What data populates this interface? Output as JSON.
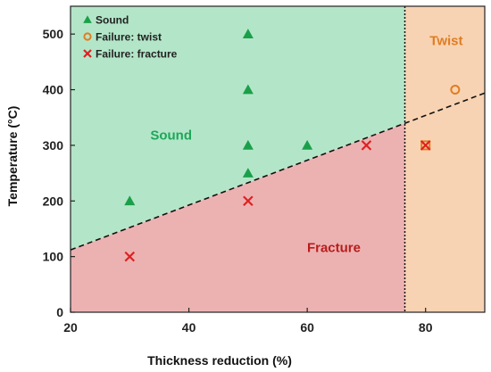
{
  "chart_data": {
    "type": "scatter",
    "xlabel": "Thickness reduction (%)",
    "ylabel": "Temperature (°C)",
    "xlim": [
      20,
      90
    ],
    "ylim": [
      0,
      550
    ],
    "xticks": [
      20,
      40,
      60,
      80
    ],
    "yticks": [
      0,
      100,
      200,
      300,
      400,
      500
    ],
    "grid": false,
    "legend_position": "top-left",
    "boundary_line": {
      "style": "dashed",
      "from": [
        20,
        112
      ],
      "to": [
        90,
        394
      ]
    },
    "vertical_boundary": {
      "style": "dotted",
      "x": 76.5
    },
    "regions": [
      {
        "label": "Sound",
        "color": "#b3e6c8",
        "label_color": "#1fa65a",
        "label_at": [
          37,
          310
        ]
      },
      {
        "label": "Fracture",
        "color": "#ecb2b2",
        "label_color": "#b81c1c",
        "label_at": [
          64.5,
          108
        ]
      },
      {
        "label": "Twist",
        "color": "#f7d3b3",
        "label_color": "#e07d22",
        "label_at": [
          83.5,
          480
        ]
      }
    ],
    "series": [
      {
        "name": "Sound",
        "marker": "triangle",
        "color": "#1aa04a",
        "points": [
          [
            30,
            200
          ],
          [
            50,
            250
          ],
          [
            50,
            300
          ],
          [
            50,
            400
          ],
          [
            50,
            500
          ],
          [
            60,
            300
          ]
        ]
      },
      {
        "name": "Failure: twist",
        "marker": "circle-open",
        "color": "#e07d22",
        "points": [
          [
            80,
            300
          ],
          [
            85,
            400
          ]
        ]
      },
      {
        "name": "Failure: fracture",
        "marker": "x",
        "color": "#e02020",
        "points": [
          [
            30,
            100
          ],
          [
            50,
            200
          ],
          [
            70,
            300
          ],
          [
            80,
            300
          ]
        ]
      }
    ]
  }
}
